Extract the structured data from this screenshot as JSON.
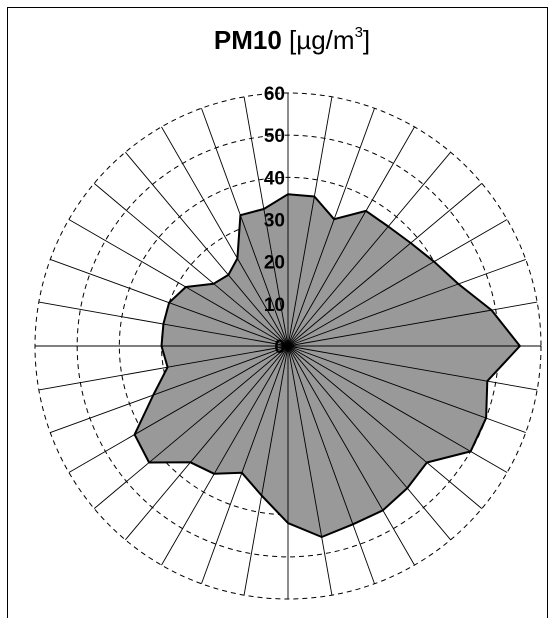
{
  "chart_data": {
    "type": "radar",
    "title_main": "PM10",
    "title_unit_prefix": "[µg/m",
    "title_unit_sup": "3",
    "title_unit_suffix": "]",
    "r_ticks": [
      "0",
      "10",
      "20",
      "30",
      "40",
      "50",
      "60"
    ],
    "r_range": [
      0,
      60
    ],
    "directions": 36,
    "direction_step_deg": 10,
    "values": [
      36,
      36,
      32,
      37,
      37,
      38,
      40,
      43,
      49,
      55,
      48,
      50,
      50,
      43,
      44,
      45,
      45,
      46,
      42,
      36,
      32,
      35,
      36,
      43,
      42,
      34,
      29,
      30,
      30,
      30,
      28,
      23,
      22,
      24,
      33,
      33
    ],
    "fill_color": "#999999",
    "grid": "dashed circles every 10"
  }
}
